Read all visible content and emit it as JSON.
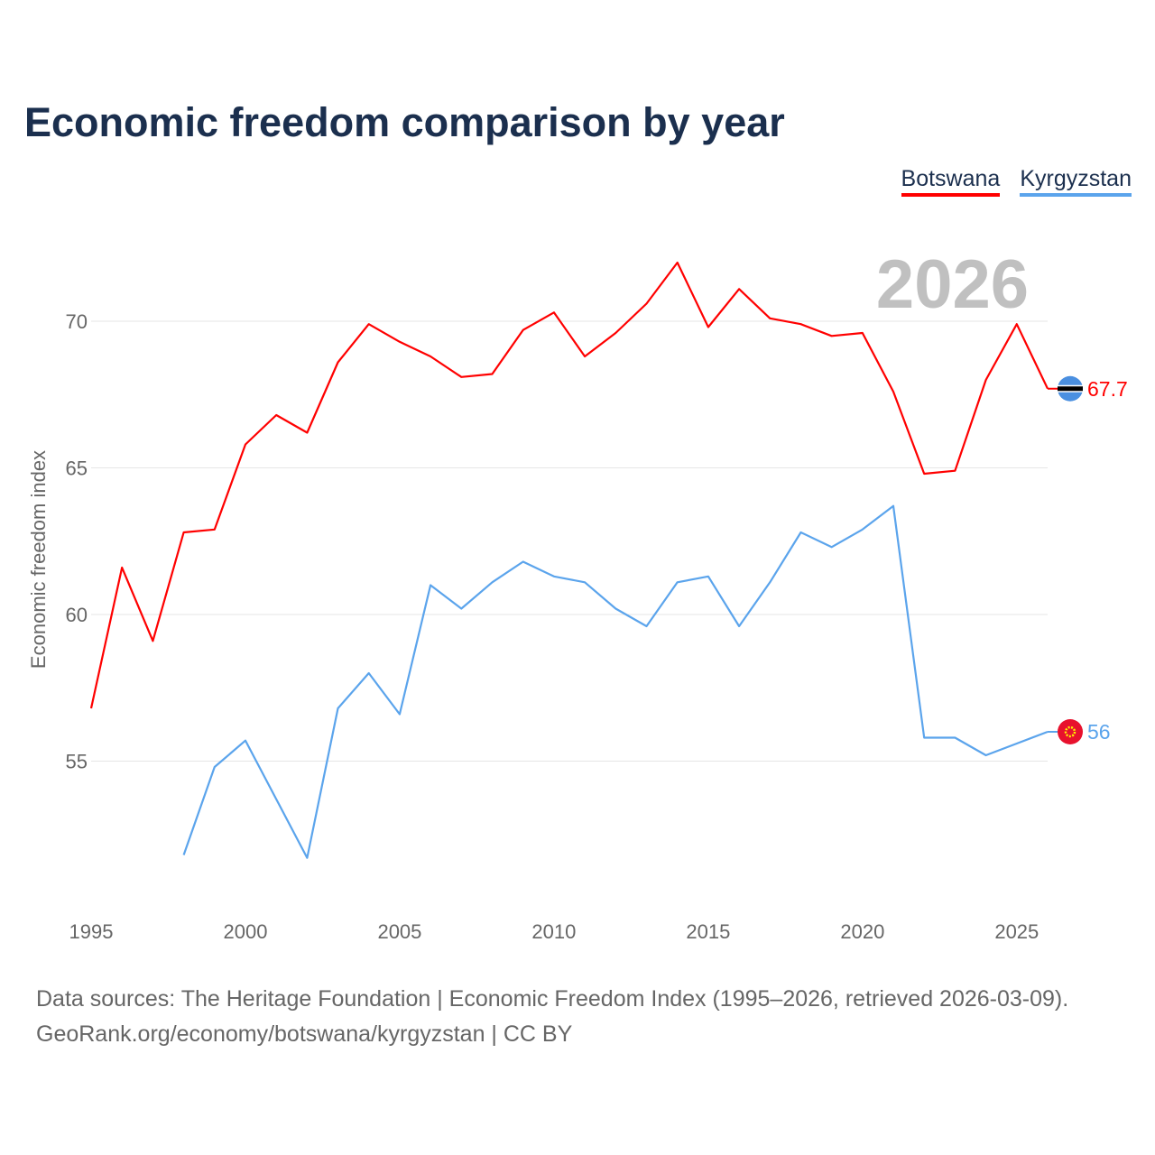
{
  "chart_data": {
    "type": "line",
    "title": "Economic freedom comparison by year",
    "xlabel": "",
    "ylabel": "Economic freedom index",
    "year_watermark": "2026",
    "x_ticks": [
      1995,
      2000,
      2005,
      2010,
      2015,
      2020,
      2025
    ],
    "y_ticks": [
      55,
      60,
      65,
      70
    ],
    "xlim": [
      1995,
      2026
    ],
    "ylim": [
      50.4,
      73.8
    ],
    "grid": true,
    "legend_placement": "top-right",
    "series": [
      {
        "name": "Botswana",
        "color": "#ff0000",
        "end_label": "67.7",
        "x": [
          1995,
          1996,
          1997,
          1998,
          1999,
          2000,
          2001,
          2002,
          2003,
          2004,
          2005,
          2006,
          2007,
          2008,
          2009,
          2010,
          2011,
          2012,
          2013,
          2014,
          2015,
          2016,
          2017,
          2018,
          2019,
          2020,
          2021,
          2022,
          2023,
          2024,
          2025,
          2026
        ],
        "values": [
          56.8,
          61.6,
          59.1,
          62.8,
          62.9,
          65.8,
          66.8,
          66.2,
          68.6,
          69.9,
          69.3,
          68.8,
          68.1,
          68.2,
          69.7,
          70.3,
          68.8,
          69.6,
          70.6,
          72.0,
          69.8,
          71.1,
          70.1,
          69.9,
          69.5,
          69.6,
          67.6,
          64.8,
          64.9,
          68.0,
          69.9,
          67.7
        ]
      },
      {
        "name": "Kyrgyzstan",
        "color": "#5ba4ec",
        "end_label": "56",
        "x": [
          1998,
          1999,
          2000,
          2001,
          2002,
          2003,
          2004,
          2005,
          2006,
          2007,
          2008,
          2009,
          2010,
          2011,
          2012,
          2013,
          2014,
          2015,
          2016,
          2017,
          2018,
          2019,
          2020,
          2021,
          2022,
          2023,
          2024,
          2025,
          2026
        ],
        "values": [
          51.8,
          54.8,
          55.7,
          53.7,
          51.7,
          56.8,
          58.0,
          56.6,
          61.0,
          60.2,
          61.1,
          61.8,
          61.3,
          61.1,
          60.2,
          59.6,
          61.1,
          61.3,
          59.6,
          61.1,
          62.8,
          62.3,
          62.9,
          63.7,
          55.8,
          55.8,
          55.2,
          55.6,
          56.0
        ]
      }
    ]
  },
  "footer": {
    "line1": "Data sources: The Heritage Foundation | Economic Freedom Index (1995–2026, retrieved 2026-03-09).",
    "line2": "GeoRank.org/economy/botswana/kyrgyzstan | CC BY"
  }
}
